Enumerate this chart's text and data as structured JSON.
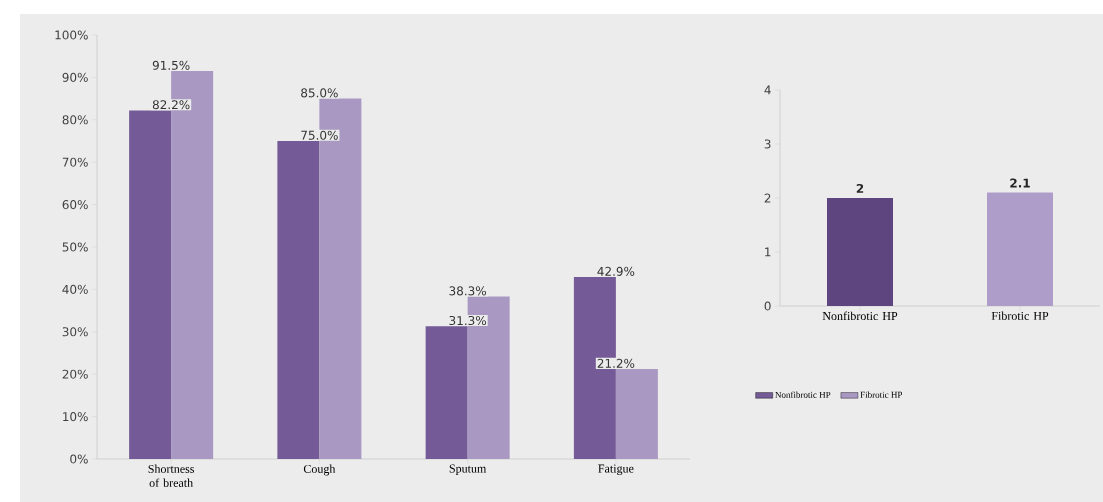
{
  "chart_data": [
    {
      "type": "bar",
      "categories": [
        "Shortness of breath",
        "Cough",
        "Sputum",
        "Fatigue"
      ],
      "series": [
        {
          "name": "Nonfibrotic HP",
          "color": "#745a96",
          "values": [
            82.2,
            75.0,
            31.3,
            42.9
          ],
          "value_labels": [
            "82.2%",
            "75.0%",
            "31.3%",
            "42.9%"
          ]
        },
        {
          "name": "Fibrotic HP",
          "color": "#a898c2",
          "values": [
            91.5,
            85.0,
            38.3,
            21.2
          ],
          "value_labels": [
            "91.5%",
            "85.0%",
            "38.3%",
            "21.2%"
          ]
        }
      ],
      "ylim": [
        0,
        100
      ],
      "yticks": [
        {
          "value": 0,
          "label": "0%"
        },
        {
          "value": 10,
          "label": "10%"
        },
        {
          "value": 20,
          "label": "20%"
        },
        {
          "value": 30,
          "label": "30%"
        },
        {
          "value": 40,
          "label": "40%"
        },
        {
          "value": 50,
          "label": "50%"
        },
        {
          "value": 60,
          "label": "60%"
        },
        {
          "value": 70,
          "label": "70%"
        },
        {
          "value": 80,
          "label": "80%"
        },
        {
          "value": 90,
          "label": "90%"
        },
        {
          "value": 100,
          "label": "100%"
        }
      ],
      "legend": "right",
      "grid": false
    },
    {
      "type": "bar",
      "categories": [
        "Nonfibrotic HP",
        "Fibrotic HP"
      ],
      "values": [
        2,
        2.1
      ],
      "colors": [
        "#5e4580",
        "#ae9dc8"
      ],
      "ylim": [
        0,
        4
      ],
      "yticks": [
        0,
        1,
        2,
        3,
        4
      ],
      "data_labels": true,
      "grid": false
    }
  ]
}
